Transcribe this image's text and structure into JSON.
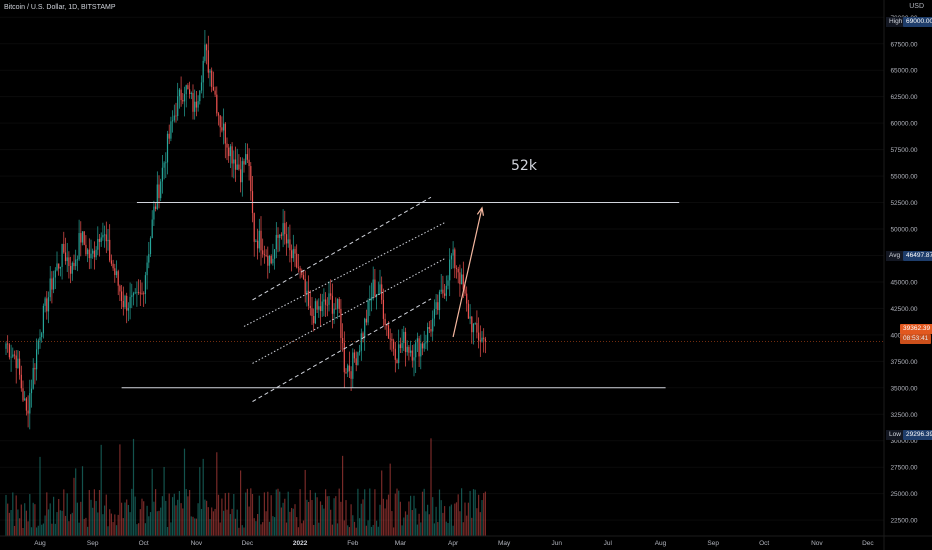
{
  "header": {
    "title": "Bitcoin / U.S. Dollar, 1D, BITSTAMP",
    "currency": "USD"
  },
  "colors": {
    "up": "#26a69a",
    "down": "#ef5350",
    "bg": "#000000",
    "line": "#d1d4dc",
    "target_arrow": "#f5b8a0",
    "tag_blue": "#1e3d6b",
    "tag_red": "#e2581f"
  },
  "tags": {
    "high_label": "High",
    "high_value": "69000.00",
    "avg_label": "Avg",
    "avg_value": "46497.87",
    "low_label": "Low",
    "low_value": "29296.39",
    "last_price": "39362.39",
    "countdown": "08:53:41"
  },
  "annotation": {
    "target": "52k"
  },
  "chart_data": {
    "type": "candlestick",
    "symbol": "Bitcoin / U.S. Dollar",
    "interval": "1D",
    "exchange": "BITSTAMP",
    "ylim": [
      21000,
      70500
    ],
    "y_ticks": [
      22500,
      25000,
      27500,
      30000,
      32500,
      35000,
      37500,
      40000,
      42500,
      45000,
      47500,
      50000,
      52500,
      55000,
      57500,
      60000,
      62500,
      65000,
      67500,
      70000
    ],
    "y_tick_labels": [
      "22500.00",
      "25000.00",
      "27500.00",
      "30000.00",
      "32500.00",
      "35000.00",
      "37500.00",
      "40000.00",
      "42500.00",
      "45000.00",
      "47500.00",
      "50000.00",
      "52500.00",
      "55000.00",
      "57500.00",
      "60000.00",
      "62500.00",
      "65000.00",
      "67500.00",
      "70000.00"
    ],
    "x_ticks": [
      "Aug",
      "Sep",
      "Oct",
      "Nov",
      "Dec",
      "2022",
      "Feb",
      "Mar",
      "Apr",
      "May",
      "Jun",
      "Jul",
      "Aug",
      "Sep",
      "Oct",
      "Nov",
      "Dec"
    ],
    "x_tick_days": [
      0,
      31,
      61,
      92,
      122,
      153,
      184,
      212,
      243,
      273,
      304,
      334,
      365,
      396,
      426,
      457,
      487
    ],
    "x_start_date": "2021-08-01",
    "anchors": [
      [
        -20,
        39200
      ],
      [
        -14,
        37800
      ],
      [
        -8,
        32500
      ],
      [
        0,
        40500
      ],
      [
        8,
        45600
      ],
      [
        14,
        47900
      ],
      [
        19,
        46200
      ],
      [
        24,
        49300
      ],
      [
        30,
        47100
      ],
      [
        36,
        50200
      ],
      [
        43,
        46300
      ],
      [
        49,
        43200
      ],
      [
        55,
        42900
      ],
      [
        60,
        43800
      ],
      [
        67,
        51600
      ],
      [
        74,
        57200
      ],
      [
        80,
        61500
      ],
      [
        85,
        63500
      ],
      [
        91,
        61300
      ],
      [
        97,
        66700
      ],
      [
        101,
        64400
      ],
      [
        106,
        60200
      ],
      [
        113,
        57100
      ],
      [
        118,
        55500
      ],
      [
        122,
        56900
      ],
      [
        126,
        49300
      ],
      [
        130,
        48900
      ],
      [
        136,
        46900
      ],
      [
        142,
        50200
      ],
      [
        147,
        47600
      ],
      [
        152,
        46300
      ],
      [
        159,
        41800
      ],
      [
        166,
        42600
      ],
      [
        171,
        43200
      ],
      [
        176,
        42100
      ],
      [
        179,
        37200
      ],
      [
        183,
        36900
      ],
      [
        187,
        38600
      ],
      [
        192,
        41600
      ],
      [
        196,
        44500
      ],
      [
        200,
        43900
      ],
      [
        205,
        40200
      ],
      [
        210,
        38300
      ],
      [
        214,
        39400
      ],
      [
        219,
        38600
      ],
      [
        225,
        39200
      ],
      [
        232,
        41600
      ],
      [
        238,
        44600
      ],
      [
        242,
        47300
      ],
      [
        246,
        46300
      ],
      [
        251,
        42500
      ],
      [
        256,
        40100
      ],
      [
        262,
        39362
      ]
    ],
    "horizontal_lines": [
      52500,
      35000
    ],
    "channel_lines": [
      {
        "style": "dashed",
        "points": [
          [
            125,
            43300
          ],
          [
            230,
            53000
          ]
        ]
      },
      {
        "style": "dotted",
        "points": [
          [
            120,
            40800
          ],
          [
            238,
            50600
          ]
        ]
      },
      {
        "style": "dotted",
        "points": [
          [
            125,
            37300
          ],
          [
            238,
            47200
          ]
        ]
      },
      {
        "style": "dashed",
        "points": [
          [
            125,
            33700
          ],
          [
            230,
            43400
          ]
        ]
      }
    ],
    "target_arrow": {
      "from": [
        243,
        39800
      ],
      "to": [
        260,
        52000
      ]
    }
  }
}
